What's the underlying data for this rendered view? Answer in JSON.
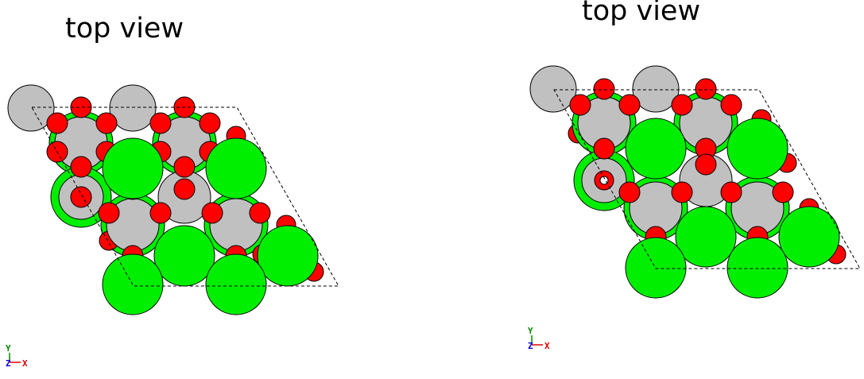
{
  "panels": [
    {
      "id": "left",
      "title": "top view",
      "axes": {
        "y": "Y",
        "z": "Z",
        "x": "X"
      }
    },
    {
      "id": "right",
      "title": "top view",
      "axes": {
        "y": "Y",
        "z": "Z",
        "x": "X"
      }
    }
  ],
  "colors": {
    "green_atom": "#00ee00",
    "gray_atom": "#c0c0c0",
    "red_atom": "#ff0000",
    "outline": "#000000",
    "axis_x": "#e00000",
    "axis_y": "#008800",
    "axis_z": "#0000dd"
  }
}
